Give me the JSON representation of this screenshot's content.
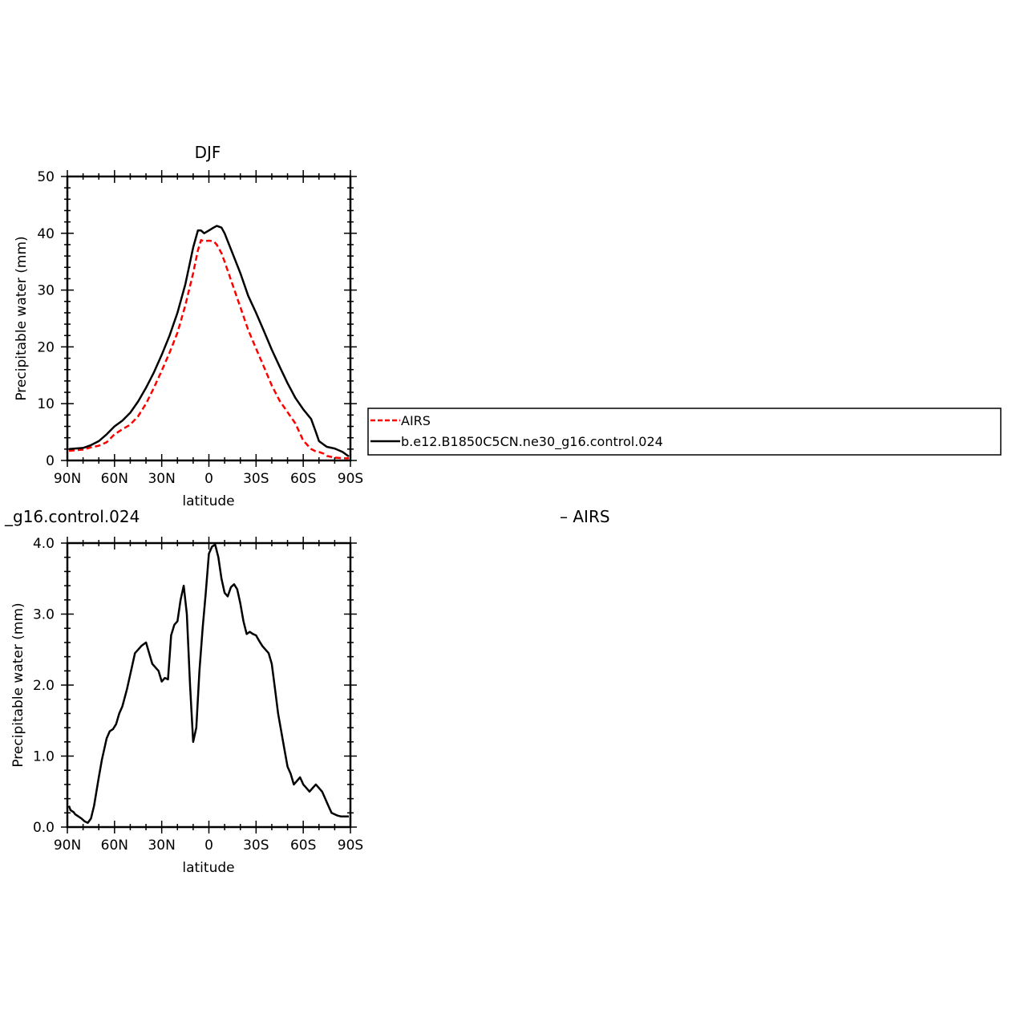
{
  "chart_data": [
    {
      "type": "line",
      "title": "DJF",
      "xlabel": "latitude",
      "ylabel": "Precipitable water (mm)",
      "xlim": [
        90,
        -90
      ],
      "ylim": [
        0,
        50
      ],
      "xticks": [
        90,
        60,
        30,
        0,
        -30,
        -60,
        -90
      ],
      "xtick_labels": [
        "90N",
        "60N",
        "30N",
        "0",
        "30S",
        "60S",
        "90S"
      ],
      "yticks": [
        0,
        10,
        20,
        30,
        40,
        50
      ],
      "ytick_labels": [
        "0",
        "10",
        "20",
        "30",
        "40",
        "50"
      ],
      "grid": false,
      "legend": {
        "placement": "right",
        "entries": [
          "AIRS",
          "b.e12.B1850C5CN.ne30_g16.control.024"
        ]
      },
      "series": [
        {
          "name": "AIRS",
          "color": "#ff0000",
          "dash": "dashed",
          "x": [
            89,
            85,
            80,
            75,
            70,
            65,
            60,
            55,
            50,
            45,
            40,
            35,
            30,
            25,
            20,
            15,
            10,
            7,
            5,
            3,
            0,
            -3,
            -5,
            -8,
            -10,
            -15,
            -20,
            -25,
            -30,
            -35,
            -40,
            -45,
            -50,
            -55,
            -60,
            -65,
            -68,
            -70,
            -73,
            -75,
            -80,
            -85,
            -89
          ],
          "y": [
            1.7,
            1.8,
            1.9,
            2.3,
            2.6,
            3.2,
            4.6,
            5.5,
            6.3,
            7.8,
            10.0,
            12.8,
            15.8,
            19.0,
            22.5,
            27.3,
            33.0,
            37.0,
            38.8,
            38.6,
            38.7,
            38.6,
            38.0,
            36.5,
            35.0,
            31.0,
            27.0,
            23.0,
            19.7,
            16.5,
            13.2,
            10.5,
            8.5,
            6.5,
            3.5,
            2.0,
            1.6,
            1.5,
            1.2,
            0.8,
            0.5,
            0.4,
            0.4
          ]
        },
        {
          "name": "b.e12.B1850C5CN.ne30_g16.control.024",
          "color": "#000000",
          "dash": "solid",
          "x": [
            89,
            85,
            80,
            75,
            70,
            65,
            60,
            55,
            50,
            45,
            40,
            35,
            30,
            25,
            20,
            15,
            10,
            7,
            5,
            3,
            0,
            -3,
            -5,
            -8,
            -10,
            -15,
            -20,
            -25,
            -30,
            -35,
            -40,
            -45,
            -50,
            -55,
            -60,
            -65,
            -68,
            -70,
            -73,
            -75,
            -80,
            -85,
            -89
          ],
          "y": [
            2.0,
            2.1,
            2.2,
            2.7,
            3.4,
            4.6,
            6.0,
            7.0,
            8.4,
            10.4,
            12.8,
            15.5,
            18.6,
            22.0,
            26.0,
            31.0,
            37.5,
            40.5,
            40.5,
            40.0,
            40.5,
            41.0,
            41.3,
            41.0,
            40.0,
            36.5,
            33.0,
            29.0,
            26.0,
            22.8,
            19.5,
            16.5,
            13.6,
            11.0,
            9.0,
            7.3,
            5.0,
            3.4,
            2.8,
            2.4,
            2.1,
            1.5,
            0.7
          ]
        }
      ]
    },
    {
      "type": "line",
      "title": "_g16.control.024",
      "title_right": "– AIRS",
      "xlabel": "latitude",
      "ylabel": "Precipitable water (mm)",
      "xlim": [
        90,
        -90
      ],
      "ylim": [
        0,
        4
      ],
      "xticks": [
        90,
        60,
        30,
        0,
        -30,
        -60,
        -90
      ],
      "xtick_labels": [
        "90N",
        "60N",
        "30N",
        "0",
        "30S",
        "60S",
        "90S"
      ],
      "yticks": [
        0,
        1,
        2,
        3,
        4
      ],
      "ytick_labels": [
        "0.0",
        "1.0",
        "2.0",
        "3.0",
        "4.0"
      ],
      "grid": false,
      "series": [
        {
          "color": "#000000",
          "dash": "solid",
          "x": [
            89,
            88,
            86,
            85,
            83,
            81,
            79,
            77,
            75,
            73,
            70,
            68,
            65,
            63,
            61,
            59,
            57,
            55,
            52,
            49,
            47,
            45,
            43,
            40,
            38,
            36,
            34,
            32,
            30,
            28,
            26,
            24,
            22,
            20,
            18,
            16,
            14,
            12,
            10,
            8,
            6,
            4,
            2,
            0,
            -2,
            -4,
            -6,
            -8,
            -10,
            -12,
            -14,
            -16,
            -18,
            -20,
            -22,
            -24,
            -26,
            -28,
            -30,
            -32,
            -34,
            -36,
            -38,
            -40,
            -42,
            -44,
            -46,
            -48,
            -50,
            -52,
            -54,
            -56,
            -58,
            -60,
            -62,
            -64,
            -66,
            -68,
            -70,
            -72,
            -74,
            -76,
            -78,
            -80,
            -82,
            -84,
            -86,
            -88,
            -89
          ],
          "y": [
            0.3,
            0.24,
            0.21,
            0.18,
            0.15,
            0.12,
            0.08,
            0.06,
            0.12,
            0.3,
            0.7,
            0.95,
            1.25,
            1.35,
            1.38,
            1.45,
            1.6,
            1.7,
            1.95,
            2.25,
            2.45,
            2.5,
            2.55,
            2.6,
            2.45,
            2.3,
            2.25,
            2.2,
            2.05,
            2.1,
            2.08,
            2.7,
            2.85,
            2.9,
            3.2,
            3.4,
            3.0,
            2.0,
            1.2,
            1.4,
            2.2,
            2.8,
            3.3,
            3.85,
            3.95,
            3.98,
            3.8,
            3.5,
            3.3,
            3.25,
            3.38,
            3.42,
            3.35,
            3.15,
            2.9,
            2.72,
            2.75,
            2.72,
            2.7,
            2.62,
            2.55,
            2.5,
            2.45,
            2.3,
            1.95,
            1.6,
            1.35,
            1.1,
            0.85,
            0.75,
            0.6,
            0.65,
            0.7,
            0.6,
            0.55,
            0.5,
            0.55,
            0.6,
            0.55,
            0.5,
            0.4,
            0.3,
            0.2,
            0.18,
            0.16,
            0.15,
            0.15,
            0.15,
            0.15
          ]
        }
      ]
    }
  ]
}
